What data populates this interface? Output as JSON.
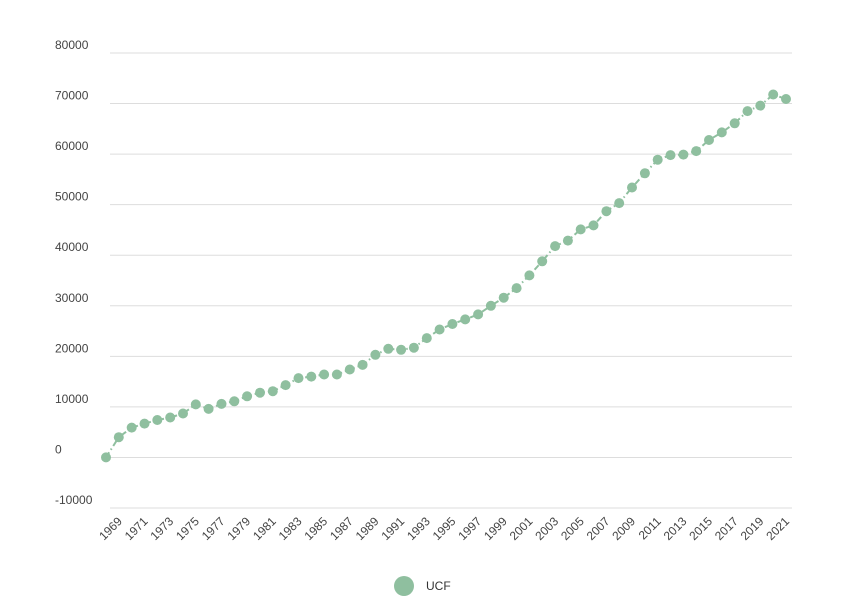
{
  "chart_data": {
    "type": "line",
    "title": "",
    "xlabel": "",
    "ylabel": "",
    "ylim": [
      -10000,
      80000
    ],
    "y_ticks": [
      "80000",
      "70000",
      "60000",
      "50000",
      "40000",
      "30000",
      "20000",
      "10000",
      "0",
      "-10000"
    ],
    "x_tick_labels": [
      "1969",
      "1971",
      "1973",
      "1975",
      "1977",
      "1979",
      "1981",
      "1983",
      "1985",
      "1987",
      "1989",
      "1991",
      "1993",
      "1995",
      "1997",
      "1999",
      "2001",
      "2003",
      "2005",
      "2007",
      "2009",
      "2011",
      "2013",
      "2015",
      "2017",
      "2019",
      "2021"
    ],
    "grid": true,
    "legend_position": "bottom-center",
    "series": [
      {
        "name": "UCF",
        "color": "#8fbf9f",
        "marker": "circle",
        "line_style": "dash-dot",
        "x": [
          1968,
          1969,
          1970,
          1971,
          1972,
          1973,
          1974,
          1975,
          1976,
          1977,
          1978,
          1979,
          1980,
          1981,
          1982,
          1983,
          1984,
          1985,
          1986,
          1987,
          1988,
          1989,
          1990,
          1991,
          1992,
          1993,
          1994,
          1995,
          1996,
          1997,
          1998,
          1999,
          2000,
          2001,
          2002,
          2003,
          2004,
          2005,
          2006,
          2007,
          2008,
          2009,
          2010,
          2011,
          2012,
          2013,
          2014,
          2015,
          2016,
          2017,
          2018,
          2019,
          2020,
          2021
        ],
        "values": [
          0,
          4000,
          5900,
          6700,
          7400,
          7900,
          8700,
          10500,
          9600,
          10600,
          11100,
          12100,
          12800,
          13100,
          14300,
          15700,
          16000,
          16400,
          16400,
          17400,
          18300,
          20300,
          21500,
          21300,
          21700,
          23600,
          25300,
          26400,
          27300,
          28300,
          30000,
          31600,
          33500,
          36000,
          38800,
          41800,
          42900,
          45100,
          45900,
          48700,
          50300,
          53400,
          56200,
          58900,
          59800,
          59900,
          60600,
          62800,
          64300,
          66100,
          68500,
          69600,
          71800,
          70900
        ]
      }
    ]
  }
}
